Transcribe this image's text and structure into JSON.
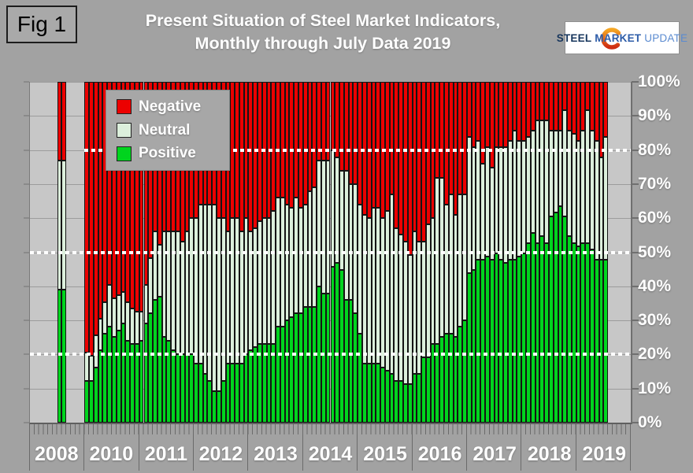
{
  "figure_label": "Fig 1",
  "title": {
    "line1": "Present Situation of Steel Market Indicators,",
    "line2": "Monthly through July Data 2019"
  },
  "logo": {
    "word1": "STEEL",
    "word2": "MARKET",
    "word3": "UPDATE"
  },
  "legend": [
    {
      "label": "Negative",
      "color": "#ec0000"
    },
    {
      "label": "Neutral",
      "color": "#dcefdc"
    },
    {
      "label": "Positive",
      "color": "#00d41e"
    }
  ],
  "y_axis": {
    "tick_labels": [
      "100%",
      "90%",
      "80%",
      "70%",
      "60%",
      "50%",
      "40%",
      "30%",
      "20%",
      "10%",
      "0%"
    ]
  },
  "x_axis": {
    "year_labels": [
      "2008",
      "2010",
      "2011",
      "2012",
      "2013",
      "2014",
      "2015",
      "2016",
      "2017",
      "2018",
      "2019"
    ]
  },
  "chart_data": {
    "type": "bar",
    "stacking": "percent",
    "title": "Present Situation of Steel Market Indicators, Monthly through July Data 2019",
    "ylim": [
      0,
      100
    ],
    "grid": "horizontal-10pct",
    "legend_position": "top-left-inside",
    "dotted_reference_lines_pct": [
      20,
      50,
      80
    ],
    "series_order_bottom_to_top": [
      "Positive",
      "Neutral",
      "Negative"
    ],
    "colors": {
      "Negative": "#ec0000",
      "Neutral": "#dcefdc",
      "Positive": "#00d41e"
    },
    "note": "values are percent of respondents; months with no bar (2008 gap, 2009) had no survey data",
    "bars": [
      {
        "year": 2008,
        "month": 7,
        "positive": 39,
        "neutral": 38,
        "negative": 23
      },
      {
        "year": 2008,
        "month": 8,
        "positive": 39,
        "neutral": 38,
        "negative": 23
      },
      {
        "year": 2010,
        "month": 1,
        "positive": 12,
        "neutral": 8,
        "negative": 80
      },
      {
        "year": 2010,
        "month": 2,
        "positive": 12,
        "neutral": 7,
        "negative": 81
      },
      {
        "year": 2010,
        "month": 3,
        "positive": 16,
        "neutral": 9,
        "negative": 75
      },
      {
        "year": 2010,
        "month": 4,
        "positive": 21,
        "neutral": 9,
        "negative": 70
      },
      {
        "year": 2010,
        "month": 5,
        "positive": 26,
        "neutral": 9,
        "negative": 65
      },
      {
        "year": 2010,
        "month": 6,
        "positive": 28,
        "neutral": 12,
        "negative": 60
      },
      {
        "year": 2010,
        "month": 7,
        "positive": 25,
        "neutral": 11,
        "negative": 64
      },
      {
        "year": 2010,
        "month": 8,
        "positive": 27,
        "neutral": 10,
        "negative": 63
      },
      {
        "year": 2010,
        "month": 9,
        "positive": 29,
        "neutral": 9,
        "negative": 62
      },
      {
        "year": 2010,
        "month": 10,
        "positive": 24,
        "neutral": 11,
        "negative": 65
      },
      {
        "year": 2010,
        "month": 11,
        "positive": 23,
        "neutral": 10,
        "negative": 67
      },
      {
        "year": 2010,
        "month": 12,
        "positive": 23,
        "neutral": 9,
        "negative": 68
      },
      {
        "year": 2011,
        "month": 1,
        "positive": 24,
        "neutral": 8,
        "negative": 68
      },
      {
        "year": 2011,
        "month": 2,
        "positive": 29,
        "neutral": 11,
        "negative": 60
      },
      {
        "year": 2011,
        "month": 3,
        "positive": 32,
        "neutral": 16,
        "negative": 52
      },
      {
        "year": 2011,
        "month": 4,
        "positive": 36,
        "neutral": 20,
        "negative": 44
      },
      {
        "year": 2011,
        "month": 5,
        "positive": 37,
        "neutral": 15,
        "negative": 48
      },
      {
        "year": 2011,
        "month": 6,
        "positive": 25,
        "neutral": 31,
        "negative": 44
      },
      {
        "year": 2011,
        "month": 7,
        "positive": 24,
        "neutral": 32,
        "negative": 44
      },
      {
        "year": 2011,
        "month": 8,
        "positive": 21,
        "neutral": 35,
        "negative": 44
      },
      {
        "year": 2011,
        "month": 9,
        "positive": 20,
        "neutral": 36,
        "negative": 44
      },
      {
        "year": 2011,
        "month": 10,
        "positive": 20,
        "neutral": 33,
        "negative": 47
      },
      {
        "year": 2011,
        "month": 11,
        "positive": 20,
        "neutral": 36,
        "negative": 44
      },
      {
        "year": 2011,
        "month": 12,
        "positive": 20,
        "neutral": 40,
        "negative": 40
      },
      {
        "year": 2012,
        "month": 1,
        "positive": 17,
        "neutral": 43,
        "negative": 40
      },
      {
        "year": 2012,
        "month": 2,
        "positive": 17,
        "neutral": 47,
        "negative": 36
      },
      {
        "year": 2012,
        "month": 3,
        "positive": 14,
        "neutral": 50,
        "negative": 36
      },
      {
        "year": 2012,
        "month": 4,
        "positive": 12,
        "neutral": 52,
        "negative": 36
      },
      {
        "year": 2012,
        "month": 5,
        "positive": 9,
        "neutral": 55,
        "negative": 36
      },
      {
        "year": 2012,
        "month": 6,
        "positive": 9,
        "neutral": 51,
        "negative": 40
      },
      {
        "year": 2012,
        "month": 7,
        "positive": 12,
        "neutral": 48,
        "negative": 40
      },
      {
        "year": 2012,
        "month": 8,
        "positive": 17,
        "neutral": 39,
        "negative": 44
      },
      {
        "year": 2012,
        "month": 9,
        "positive": 17,
        "neutral": 43,
        "negative": 40
      },
      {
        "year": 2012,
        "month": 10,
        "positive": 17,
        "neutral": 43,
        "negative": 40
      },
      {
        "year": 2012,
        "month": 11,
        "positive": 17,
        "neutral": 39,
        "negative": 44
      },
      {
        "year": 2012,
        "month": 12,
        "positive": 20,
        "neutral": 40,
        "negative": 40
      },
      {
        "year": 2013,
        "month": 1,
        "positive": 21,
        "neutral": 35,
        "negative": 44
      },
      {
        "year": 2013,
        "month": 2,
        "positive": 22,
        "neutral": 35,
        "negative": 43
      },
      {
        "year": 2013,
        "month": 3,
        "positive": 23,
        "neutral": 36,
        "negative": 41
      },
      {
        "year": 2013,
        "month": 4,
        "positive": 23,
        "neutral": 37,
        "negative": 40
      },
      {
        "year": 2013,
        "month": 5,
        "positive": 23,
        "neutral": 37,
        "negative": 40
      },
      {
        "year": 2013,
        "month": 6,
        "positive": 23,
        "neutral": 39,
        "negative": 38
      },
      {
        "year": 2013,
        "month": 7,
        "positive": 28,
        "neutral": 38,
        "negative": 34
      },
      {
        "year": 2013,
        "month": 8,
        "positive": 28,
        "neutral": 38,
        "negative": 34
      },
      {
        "year": 2013,
        "month": 9,
        "positive": 30,
        "neutral": 34,
        "negative": 36
      },
      {
        "year": 2013,
        "month": 10,
        "positive": 31,
        "neutral": 32,
        "negative": 37
      },
      {
        "year": 2013,
        "month": 11,
        "positive": 32,
        "neutral": 34,
        "negative": 34
      },
      {
        "year": 2013,
        "month": 12,
        "positive": 32,
        "neutral": 31,
        "negative": 37
      },
      {
        "year": 2014,
        "month": 1,
        "positive": 34,
        "neutral": 30,
        "negative": 36
      },
      {
        "year": 2014,
        "month": 2,
        "positive": 34,
        "neutral": 34,
        "negative": 32
      },
      {
        "year": 2014,
        "month": 3,
        "positive": 34,
        "neutral": 35,
        "negative": 31
      },
      {
        "year": 2014,
        "month": 4,
        "positive": 40,
        "neutral": 37,
        "negative": 23
      },
      {
        "year": 2014,
        "month": 5,
        "positive": 38,
        "neutral": 39,
        "negative": 23
      },
      {
        "year": 2014,
        "month": 6,
        "positive": 38,
        "neutral": 39,
        "negative": 23
      },
      {
        "year": 2014,
        "month": 7,
        "positive": 46,
        "neutral": 34,
        "negative": 20
      },
      {
        "year": 2014,
        "month": 8,
        "positive": 47,
        "neutral": 31,
        "negative": 22
      },
      {
        "year": 2014,
        "month": 9,
        "positive": 45,
        "neutral": 29,
        "negative": 26
      },
      {
        "year": 2014,
        "month": 10,
        "positive": 36,
        "neutral": 38,
        "negative": 26
      },
      {
        "year": 2014,
        "month": 11,
        "positive": 36,
        "neutral": 34,
        "negative": 30
      },
      {
        "year": 2014,
        "month": 12,
        "positive": 32,
        "neutral": 38,
        "negative": 30
      },
      {
        "year": 2015,
        "month": 1,
        "positive": 26,
        "neutral": 38,
        "negative": 36
      },
      {
        "year": 2015,
        "month": 2,
        "positive": 17,
        "neutral": 44,
        "negative": 39
      },
      {
        "year": 2015,
        "month": 3,
        "positive": 17,
        "neutral": 43,
        "negative": 40
      },
      {
        "year": 2015,
        "month": 4,
        "positive": 17,
        "neutral": 46,
        "negative": 37
      },
      {
        "year": 2015,
        "month": 5,
        "positive": 17,
        "neutral": 46,
        "negative": 37
      },
      {
        "year": 2015,
        "month": 6,
        "positive": 16,
        "neutral": 44,
        "negative": 40
      },
      {
        "year": 2015,
        "month": 7,
        "positive": 15,
        "neutral": 47,
        "negative": 38
      },
      {
        "year": 2015,
        "month": 8,
        "positive": 14,
        "neutral": 53,
        "negative": 33
      },
      {
        "year": 2015,
        "month": 9,
        "positive": 12,
        "neutral": 45,
        "negative": 43
      },
      {
        "year": 2015,
        "month": 10,
        "positive": 12,
        "neutral": 43,
        "negative": 45
      },
      {
        "year": 2015,
        "month": 11,
        "positive": 11,
        "neutral": 42,
        "negative": 47
      },
      {
        "year": 2015,
        "month": 12,
        "positive": 11,
        "neutral": 38,
        "negative": 51
      },
      {
        "year": 2016,
        "month": 1,
        "positive": 14,
        "neutral": 42,
        "negative": 44
      },
      {
        "year": 2016,
        "month": 2,
        "positive": 14,
        "neutral": 39,
        "negative": 47
      },
      {
        "year": 2016,
        "month": 3,
        "positive": 19,
        "neutral": 34,
        "negative": 47
      },
      {
        "year": 2016,
        "month": 4,
        "positive": 19,
        "neutral": 39,
        "negative": 42
      },
      {
        "year": 2016,
        "month": 5,
        "positive": 23,
        "neutral": 37,
        "negative": 40
      },
      {
        "year": 2016,
        "month": 6,
        "positive": 23,
        "neutral": 49,
        "negative": 28
      },
      {
        "year": 2016,
        "month": 7,
        "positive": 25,
        "neutral": 47,
        "negative": 28
      },
      {
        "year": 2016,
        "month": 8,
        "positive": 26,
        "neutral": 38,
        "negative": 36
      },
      {
        "year": 2016,
        "month": 9,
        "positive": 26,
        "neutral": 41,
        "negative": 33
      },
      {
        "year": 2016,
        "month": 10,
        "positive": 25,
        "neutral": 36,
        "negative": 39
      },
      {
        "year": 2016,
        "month": 11,
        "positive": 28,
        "neutral": 39,
        "negative": 33
      },
      {
        "year": 2016,
        "month": 12,
        "positive": 30,
        "neutral": 37,
        "negative": 33
      },
      {
        "year": 2017,
        "month": 1,
        "positive": 44,
        "neutral": 40,
        "negative": 16
      },
      {
        "year": 2017,
        "month": 2,
        "positive": 45,
        "neutral": 36,
        "negative": 19
      },
      {
        "year": 2017,
        "month": 3,
        "positive": 48,
        "neutral": 35,
        "negative": 17
      },
      {
        "year": 2017,
        "month": 4,
        "positive": 48,
        "neutral": 28,
        "negative": 24
      },
      {
        "year": 2017,
        "month": 5,
        "positive": 49,
        "neutral": 32,
        "negative": 19
      },
      {
        "year": 2017,
        "month": 6,
        "positive": 48,
        "neutral": 27,
        "negative": 25
      },
      {
        "year": 2017,
        "month": 7,
        "positive": 50,
        "neutral": 31,
        "negative": 19
      },
      {
        "year": 2017,
        "month": 8,
        "positive": 48,
        "neutral": 33,
        "negative": 19
      },
      {
        "year": 2017,
        "month": 9,
        "positive": 47,
        "neutral": 34,
        "negative": 19
      },
      {
        "year": 2017,
        "month": 10,
        "positive": 48,
        "neutral": 35,
        "negative": 17
      },
      {
        "year": 2017,
        "month": 11,
        "positive": 48,
        "neutral": 38,
        "negative": 14
      },
      {
        "year": 2017,
        "month": 12,
        "positive": 49,
        "neutral": 34,
        "negative": 17
      },
      {
        "year": 2018,
        "month": 1,
        "positive": 50,
        "neutral": 33,
        "negative": 17
      },
      {
        "year": 2018,
        "month": 2,
        "positive": 53,
        "neutral": 31,
        "negative": 16
      },
      {
        "year": 2018,
        "month": 3,
        "positive": 56,
        "neutral": 30,
        "negative": 14
      },
      {
        "year": 2018,
        "month": 4,
        "positive": 53,
        "neutral": 36,
        "negative": 11
      },
      {
        "year": 2018,
        "month": 5,
        "positive": 55,
        "neutral": 34,
        "negative": 11
      },
      {
        "year": 2018,
        "month": 6,
        "positive": 53,
        "neutral": 36,
        "negative": 11
      },
      {
        "year": 2018,
        "month": 7,
        "positive": 61,
        "neutral": 25,
        "negative": 14
      },
      {
        "year": 2018,
        "month": 8,
        "positive": 62,
        "neutral": 24,
        "negative": 14
      },
      {
        "year": 2018,
        "month": 9,
        "positive": 64,
        "neutral": 22,
        "negative": 14
      },
      {
        "year": 2018,
        "month": 10,
        "positive": 61,
        "neutral": 31,
        "negative": 8
      },
      {
        "year": 2018,
        "month": 11,
        "positive": 55,
        "neutral": 31,
        "negative": 14
      },
      {
        "year": 2018,
        "month": 12,
        "positive": 53,
        "neutral": 32,
        "negative": 15
      },
      {
        "year": 2019,
        "month": 1,
        "positive": 52,
        "neutral": 31,
        "negative": 17
      },
      {
        "year": 2019,
        "month": 2,
        "positive": 53,
        "neutral": 33,
        "negative": 14
      },
      {
        "year": 2019,
        "month": 3,
        "positive": 53,
        "neutral": 39,
        "negative": 8
      },
      {
        "year": 2019,
        "month": 4,
        "positive": 51,
        "neutral": 35,
        "negative": 14
      },
      {
        "year": 2019,
        "month": 5,
        "positive": 48,
        "neutral": 35,
        "negative": 17
      },
      {
        "year": 2019,
        "month": 6,
        "positive": 48,
        "neutral": 30,
        "negative": 22
      },
      {
        "year": 2019,
        "month": 7,
        "positive": 48,
        "neutral": 36,
        "negative": 16
      }
    ]
  }
}
